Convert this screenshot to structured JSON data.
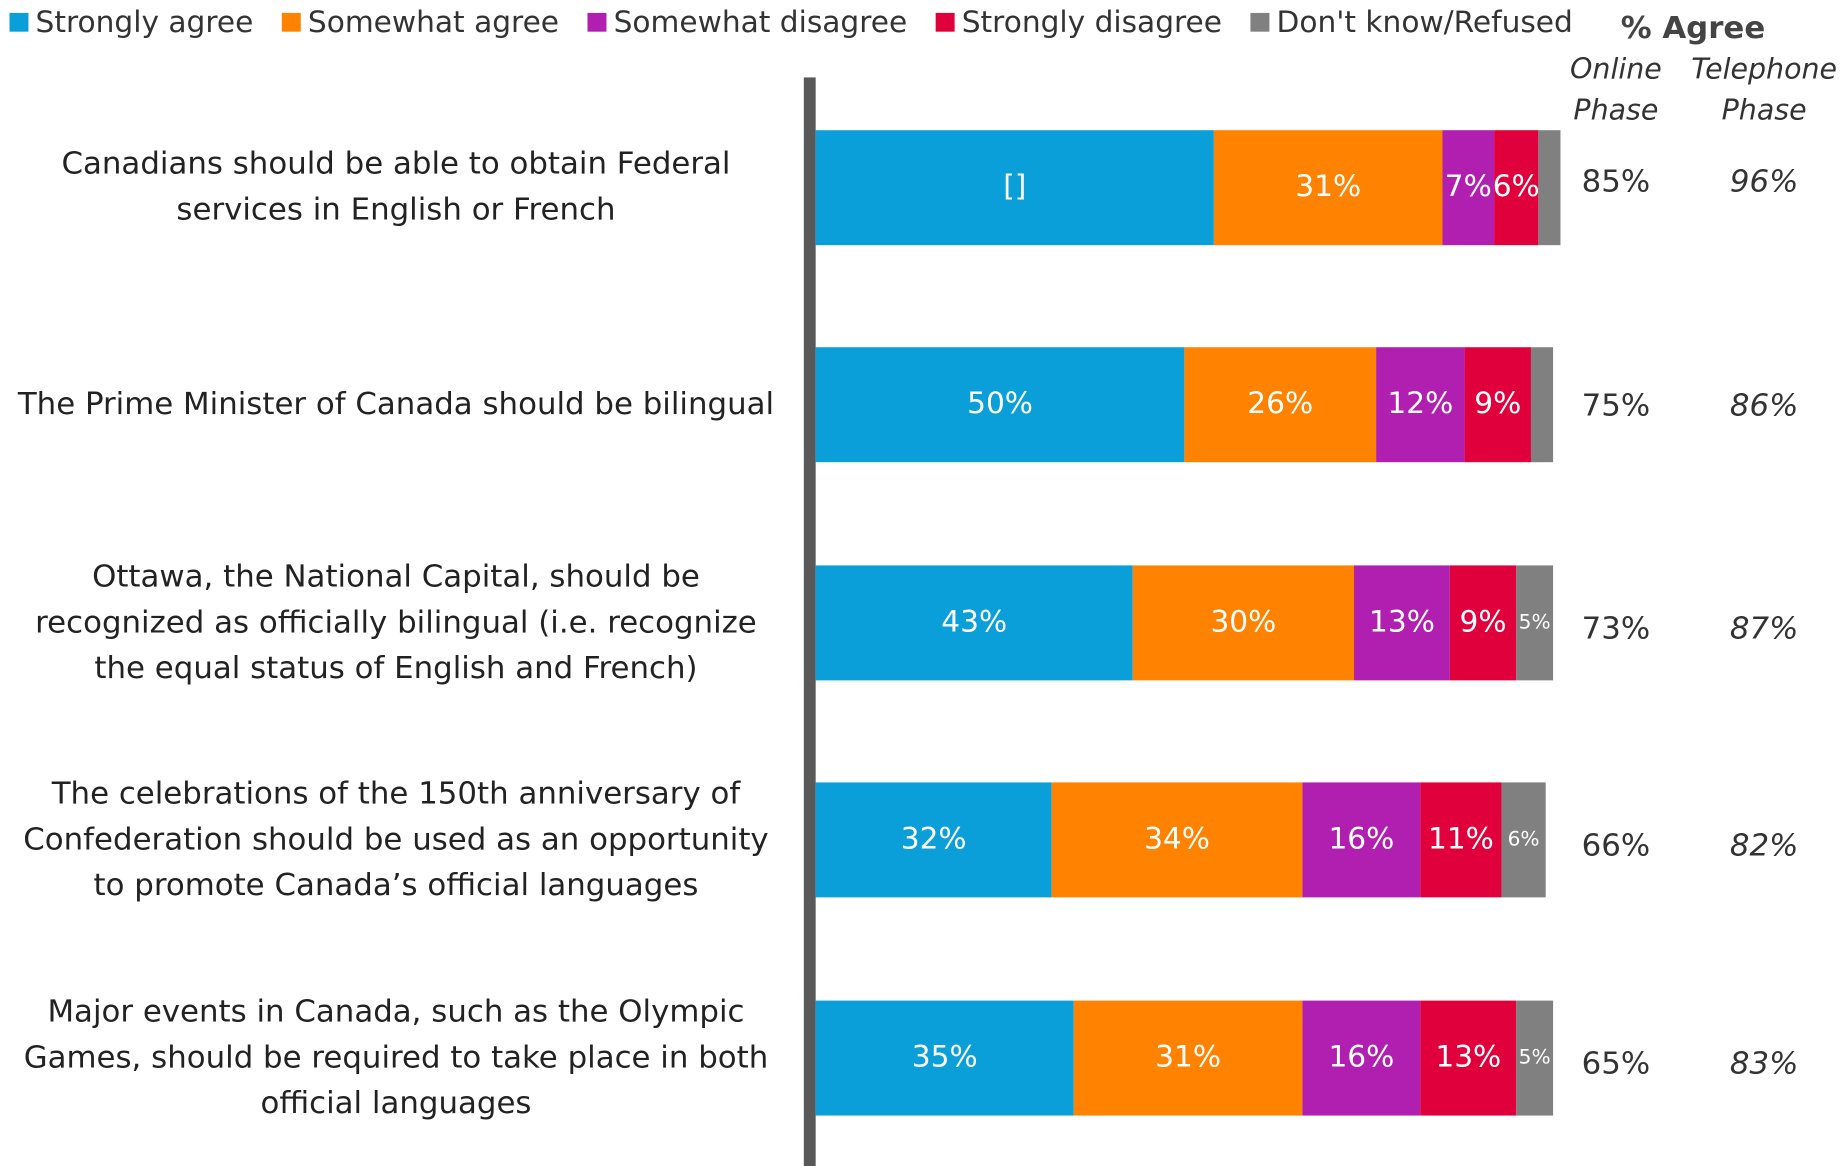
{
  "chart_data": {
    "type": "stacked_bar_horizontal",
    "categories": [
      "Canadians should be able to obtain Federal services in English or French",
      "The Prime Minister of Canada should be bilingual",
      "Ottawa, the National Capital, should be recognized as officially bilingual (i.e. recognize the equal status of English and French)",
      "The celebrations of the 150th anniversary of Confederation should be used as an opportunity to promote Canada’s official languages",
      "Major events in Canada, such as the Olympic Games, should be required to take place in both official languages"
    ],
    "series": [
      {
        "name": "Strongly agree",
        "color": "#0a9fd8",
        "values": [
          54,
          50,
          43,
          32,
          35
        ],
        "value_labels": [
          "[]",
          "50%",
          "43%",
          "32%",
          "35%"
        ]
      },
      {
        "name": "Somewhat agree",
        "color": "#ff8200",
        "values": [
          31,
          26,
          30,
          34,
          31
        ],
        "value_labels": [
          "31%",
          "26%",
          "30%",
          "34%",
          "31%"
        ]
      },
      {
        "name": "Somewhat disagree",
        "color": "#b01fb0",
        "values": [
          7,
          12,
          13,
          16,
          16
        ],
        "value_labels": [
          "7%",
          "12%",
          "13%",
          "16%",
          "16%"
        ]
      },
      {
        "name": "Strongly disagree",
        "color": "#e0003b",
        "values": [
          6,
          9,
          9,
          11,
          13
        ],
        "value_labels": [
          "6%",
          "9%",
          "9%",
          "11%",
          "13%"
        ]
      },
      {
        "name": "Don't know/Refused",
        "color": "#808080",
        "values": [
          3,
          3,
          5,
          6,
          5
        ],
        "value_labels": [
          null,
          null,
          "5%",
          "6%",
          "5%"
        ]
      }
    ],
    "xlim": [
      0,
      100
    ],
    "agree_title": "% Agree",
    "agree_columns": [
      {
        "name": "Online Phase",
        "values": [
          85,
          75,
          73,
          66,
          65
        ],
        "value_labels": [
          "85%",
          "75%",
          "73%",
          "66%",
          "65%"
        ],
        "italic": false
      },
      {
        "name": "Telephone Phase",
        "values": [
          96,
          86,
          87,
          82,
          83
        ],
        "value_labels": [
          "96%",
          "86%",
          "87%",
          "82%",
          "83%"
        ],
        "italic": true
      }
    ]
  }
}
